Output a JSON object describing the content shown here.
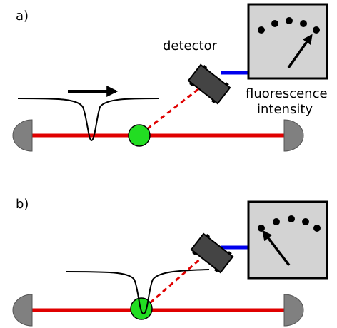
{
  "panel_a": {
    "label": "a)",
    "detector": "detector",
    "meter_label": [
      "fluorescence",
      "intensity"
    ]
  },
  "panel_b": {
    "label": "b)"
  }
}
